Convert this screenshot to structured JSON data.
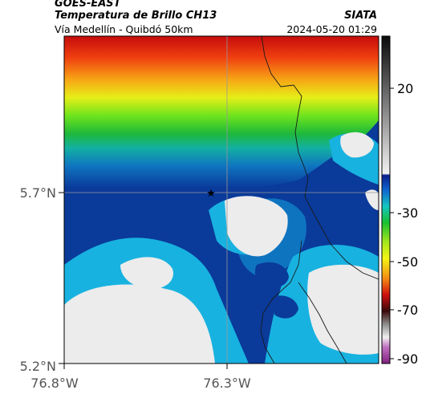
{
  "header": {
    "satellite": "GOES-EAST",
    "product": "Temperatura de Brillo CH13",
    "agency": "SIATA",
    "route": "Vía Medellín - Quibdó 50km",
    "timestamp": "2024-05-20 01:29"
  },
  "axes": {
    "lat_ticks": [
      "5.7°N",
      "5.2°N"
    ],
    "lon_ticks": [
      "76.8°W",
      "76.3°W"
    ]
  },
  "colorbar": {
    "tick_labels": [
      "20",
      "-30",
      "-50",
      "-70",
      "-90"
    ]
  },
  "marker": {
    "symbol": "★"
  }
}
